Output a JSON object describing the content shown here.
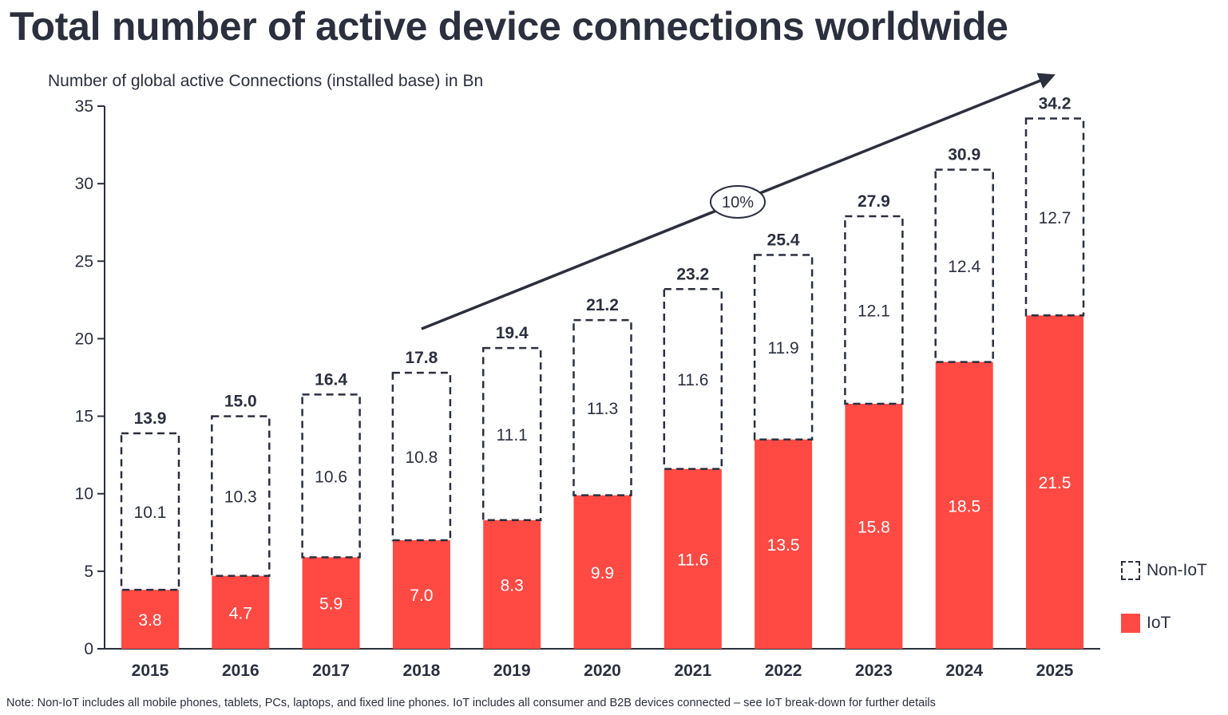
{
  "title": "Total number of active device connections worldwide",
  "subtitle": "Number of global active Connections (installed base) in Bn",
  "footnote": "Note: Non-IoT includes all mobile phones, tablets, PCs, laptops, and fixed line phones. IoT includes all consumer and B2B devices connected – see IoT break-down for further details",
  "colors": {
    "iot": "#ff4a44",
    "nonIot_border": "#2b2f3e",
    "text": "#2b2f3e"
  },
  "chart_data": {
    "type": "bar",
    "stacked": true,
    "categories": [
      "2015",
      "2016",
      "2017",
      "2018",
      "2019",
      "2020",
      "2021",
      "2022",
      "2023",
      "2024",
      "2025"
    ],
    "series": [
      {
        "name": "IoT",
        "values": [
          3.8,
          4.7,
          5.9,
          7.0,
          8.3,
          9.9,
          11.6,
          13.5,
          15.8,
          18.5,
          21.5
        ]
      },
      {
        "name": "Non-IoT",
        "values": [
          10.1,
          10.3,
          10.6,
          10.8,
          11.1,
          11.3,
          11.6,
          11.9,
          12.1,
          12.4,
          12.7
        ]
      }
    ],
    "value_labels": {
      "IoT": [
        "3.8",
        "4.7",
        "5.9",
        "7.0",
        "8.3",
        "9.9",
        "11.6",
        "13.5",
        "15.8",
        "18.5",
        "21.5"
      ],
      "Non-IoT": [
        "10.1",
        "10.3",
        "10.6",
        "10.8",
        "11.1",
        "11.3",
        "11.6",
        "11.9",
        "12.1",
        "12.4",
        "12.7"
      ]
    },
    "totals": [
      13.9,
      15.0,
      16.4,
      17.8,
      19.4,
      21.2,
      23.2,
      25.4,
      27.9,
      30.9,
      34.2
    ],
    "total_labels": [
      "13.9",
      "15.0",
      "16.4",
      "17.8",
      "19.4",
      "21.2",
      "23.2",
      "25.4",
      "27.9",
      "30.9",
      "34.2"
    ],
    "ylim": [
      0,
      35
    ],
    "yticks": [
      0,
      5,
      10,
      15,
      20,
      25,
      30,
      35
    ],
    "ylabel": "Number of global active Connections (installed base) in Bn",
    "grid": false,
    "legend": {
      "position": "right-bottom",
      "entries": [
        "Non-IoT",
        "IoT"
      ]
    },
    "annotations": [
      {
        "type": "trend-arrow",
        "from_category": "2018",
        "to_category": "2025",
        "label": "10%"
      }
    ]
  }
}
